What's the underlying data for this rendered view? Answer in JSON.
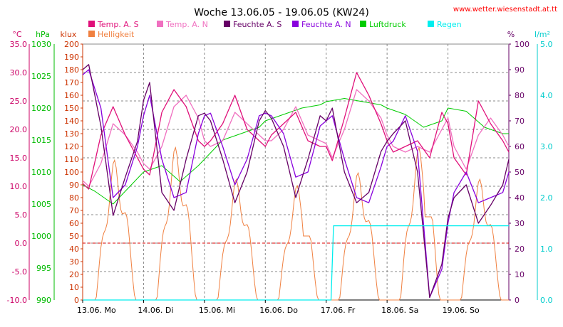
{
  "chart_data": {
    "type": "line",
    "title": "Woche 13.06.05 - 19.06.05 (KW24)",
    "source": "www.wetter.wiesenstadt.at.tt",
    "x_labels": [
      "13.06. Mo",
      "14.06. Di",
      "15.06. Mi",
      "16.06. Do",
      "17.06. Fr",
      "18.06. Sa",
      "19.06. So"
    ],
    "axes": {
      "temp": {
        "unit": "°C",
        "range": [
          -10,
          35
        ],
        "ticks": [
          "35.0",
          "30.0",
          "25.0",
          "20.0",
          "15.0",
          "10.0",
          "5.0",
          "0.0",
          "-5.0",
          "-10.0"
        ],
        "color": "#cc0066"
      },
      "pressure": {
        "unit": "hPa",
        "range": [
          990,
          1030
        ],
        "ticks": [
          "1030",
          "1025",
          "1020",
          "1015",
          "1010",
          "1005",
          "1000",
          "995",
          "990"
        ],
        "color": "#00bb00"
      },
      "lux": {
        "unit": "klux",
        "range": [
          0,
          200
        ],
        "ticks": [
          "200",
          "190",
          "180",
          "170",
          "160",
          "150",
          "140",
          "130",
          "120",
          "110",
          "100",
          "90",
          "80",
          "70",
          "60",
          "50",
          "40",
          "30",
          "20",
          "10",
          "0"
        ],
        "color": "#cc3300"
      },
      "humidity": {
        "unit": "%",
        "range": [
          0,
          100
        ],
        "ticks": [
          "100",
          "90",
          "80",
          "70",
          "60",
          "50",
          "40",
          "30",
          "20",
          "10",
          "0"
        ],
        "color": "#660066"
      },
      "rain": {
        "unit": "l/m²",
        "range": [
          0,
          5
        ],
        "ticks": [
          "5.0",
          "4.0",
          "3.0",
          "2.0",
          "1.0",
          "0.0"
        ],
        "color": "#00cccc"
      }
    },
    "legend": [
      {
        "name": "Temp. A. S",
        "color": "#e0107a"
      },
      {
        "name": "Temp. A. N",
        "color": "#f070c0"
      },
      {
        "name": "Feuchte A. S",
        "color": "#660066"
      },
      {
        "name": "Feuchte A. N",
        "color": "#8800dd"
      },
      {
        "name": "Luftdruck",
        "color": "#00cc00"
      },
      {
        "name": "Regen",
        "color": "#00eeee"
      },
      {
        "name": "Helligkeit",
        "color": "#f08040"
      }
    ],
    "series": {
      "temp_s": {
        "t": [
          0,
          0.1,
          0.3,
          0.5,
          0.7,
          0.9,
          1.0,
          1.1,
          1.3,
          1.5,
          1.7,
          1.9,
          2.0,
          2.1,
          2.3,
          2.5,
          2.7,
          2.9,
          3.0,
          3.1,
          3.3,
          3.5,
          3.7,
          3.9,
          4.0,
          4.1,
          4.3,
          4.5,
          4.7,
          4.9,
          5.0,
          5.1,
          5.3,
          5.5,
          5.7,
          5.9,
          6.0,
          6.1,
          6.3,
          6.5,
          6.7,
          6.9,
          7.0
        ],
        "v": [
          10.5,
          9.5,
          19,
          24,
          19,
          15,
          13,
          12,
          23,
          27,
          24,
          18,
          17,
          18,
          21,
          26,
          20,
          18,
          17,
          19,
          21,
          23,
          18,
          17,
          17,
          14.5,
          22,
          30,
          26,
          21,
          18,
          16,
          17,
          18,
          15,
          23,
          21,
          15,
          12,
          25,
          21,
          18,
          16
        ]
      },
      "temp_n": {
        "t": [
          0,
          0.1,
          0.3,
          0.5,
          0.7,
          0.9,
          1.0,
          1.1,
          1.3,
          1.5,
          1.7,
          1.9,
          2.0,
          2.1,
          2.3,
          2.5,
          2.7,
          2.9,
          3.0,
          3.1,
          3.3,
          3.5,
          3.7,
          3.9,
          4.0,
          4.1,
          4.3,
          4.5,
          4.7,
          4.9,
          5.0,
          5.1,
          5.3,
          5.5,
          5.7,
          5.9,
          6.0,
          6.1,
          6.3,
          6.5,
          6.7,
          6.9,
          7.0
        ],
        "v": [
          11,
          10,
          14,
          21,
          19,
          16,
          14,
          13,
          17,
          24,
          26,
          22,
          18,
          17,
          18,
          23,
          21,
          19,
          18,
          18,
          20,
          24,
          19,
          18,
          17.5,
          15,
          20,
          27,
          25,
          22,
          19,
          17,
          16,
          17,
          16,
          20,
          22,
          17,
          13,
          19,
          22,
          19,
          17
        ]
      },
      "hum_s": {
        "t": [
          0,
          0.1,
          0.3,
          0.5,
          0.7,
          0.9,
          1.0,
          1.1,
          1.3,
          1.5,
          1.7,
          1.9,
          2.0,
          2.1,
          2.3,
          2.5,
          2.7,
          2.9,
          3.0,
          3.1,
          3.3,
          3.5,
          3.7,
          3.9,
          4.0,
          4.1,
          4.3,
          4.5,
          4.7,
          4.9,
          5.0,
          5.1,
          5.3,
          5.5,
          5.7,
          5.9,
          6.0,
          6.1,
          6.3,
          6.5,
          6.7,
          6.9,
          7.0
        ],
        "v": [
          90,
          92,
          68,
          33,
          48,
          62,
          78,
          85,
          42,
          35,
          55,
          72,
          73,
          70,
          55,
          38,
          50,
          70,
          74,
          71,
          60,
          40,
          55,
          72,
          70,
          75,
          50,
          38,
          42,
          58,
          62,
          65,
          70,
          50,
          1,
          14,
          32,
          40,
          45,
          30,
          37,
          45,
          55
        ]
      },
      "hum_n": {
        "t": [
          0,
          0.1,
          0.3,
          0.5,
          0.7,
          0.9,
          1.0,
          1.1,
          1.3,
          1.5,
          1.7,
          1.9,
          2.0,
          2.1,
          2.3,
          2.5,
          2.7,
          2.9,
          3.0,
          3.1,
          3.3,
          3.5,
          3.7,
          3.9,
          4.0,
          4.1,
          4.3,
          4.5,
          4.7,
          4.9,
          5.0,
          5.1,
          5.3,
          5.5,
          5.7,
          5.9,
          6.0,
          6.1,
          6.3,
          6.5,
          6.7,
          6.9,
          7.0
        ],
        "v": [
          88,
          90,
          75,
          40,
          45,
          60,
          72,
          80,
          55,
          40,
          42,
          65,
          72,
          73,
          60,
          45,
          55,
          72,
          73,
          72,
          65,
          48,
          50,
          68,
          70,
          72,
          55,
          40,
          38,
          52,
          60,
          62,
          72,
          58,
          1,
          12,
          30,
          42,
          50,
          38,
          40,
          42,
          50
        ]
      },
      "pressure": {
        "t": [
          0,
          0.2,
          0.5,
          0.8,
          1.0,
          1.3,
          1.6,
          1.9,
          2.0,
          2.3,
          2.6,
          2.9,
          3.0,
          3.3,
          3.6,
          3.9,
          4.0,
          4.3,
          4.6,
          4.9,
          5.0,
          5.3,
          5.6,
          5.9,
          6.0,
          6.3,
          6.6,
          6.9,
          7.0
        ],
        "v": [
          1008,
          1007,
          1005,
          1008,
          1010,
          1011,
          1008.5,
          1011,
          1012,
          1015,
          1016,
          1017,
          1018,
          1019,
          1020,
          1020.5,
          1021,
          1021.5,
          1021,
          1020.5,
          1020,
          1019,
          1017,
          1018,
          1020,
          1019.5,
          1017,
          1016,
          1016
        ]
      },
      "rain": {
        "t": [
          0,
          4.08,
          4.12,
          7.0
        ],
        "v": [
          0,
          0,
          1.45,
          1.45
        ]
      },
      "lux_peaks": [
        110,
        120,
        95,
        90,
        100,
        120,
        95
      ],
      "lux_secondary": [
        0,
        0,
        75,
        50,
        0,
        65,
        105
      ]
    }
  }
}
